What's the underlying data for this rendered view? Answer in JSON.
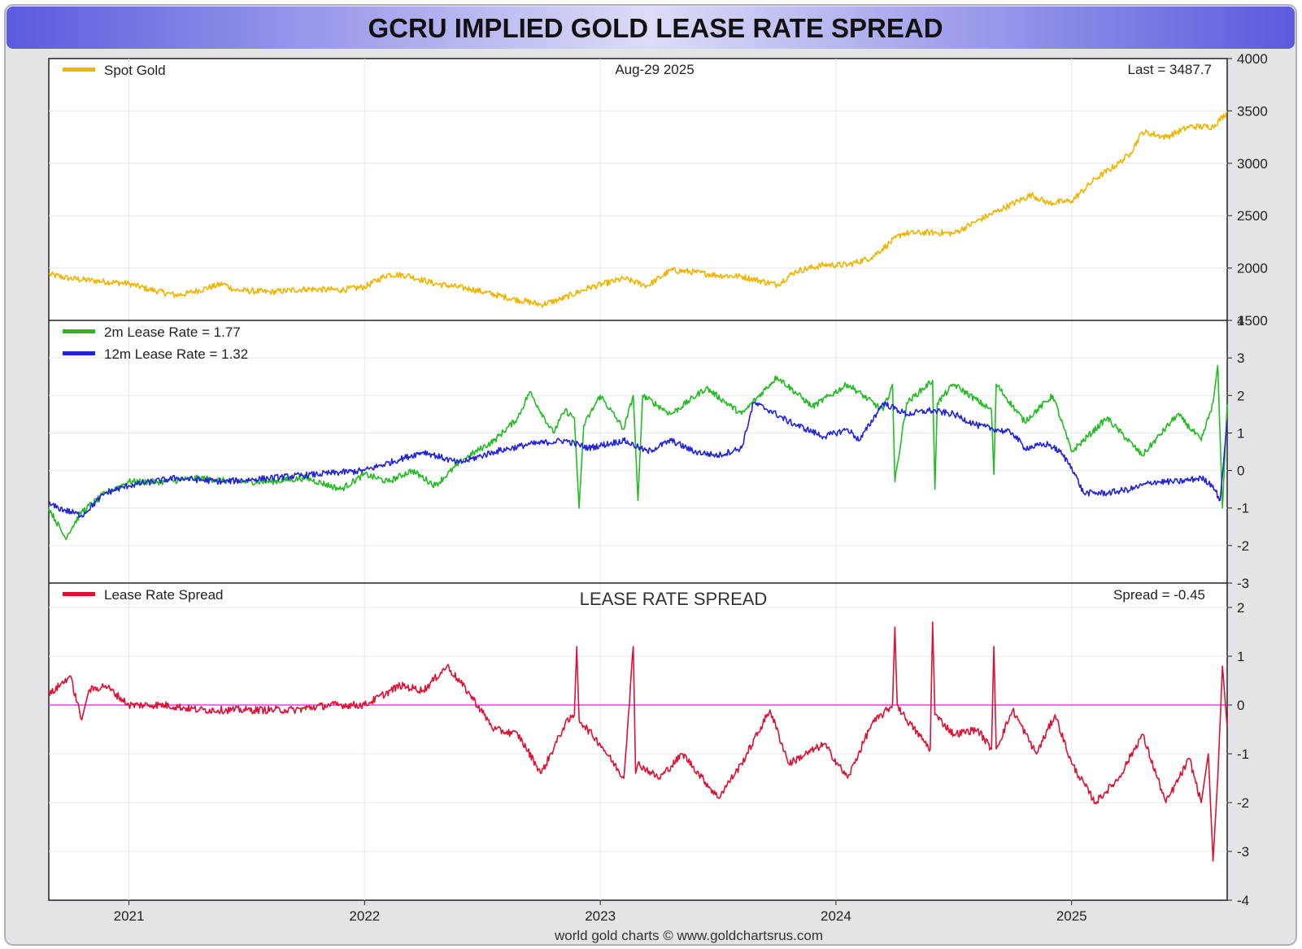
{
  "page": {
    "title": "GCRU IMPLIED GOLD LEASE RATE SPREAD",
    "footer": "world gold charts © www.goldchartsrus.com",
    "colors": {
      "header_gradient_mid": "#d9d9f7",
      "header_gradient_edge": "#5b5bde",
      "frame_bg": "#e4e4e8",
      "gold": "#f0b400",
      "green": "#22bb22",
      "blue": "#2222dd",
      "red": "#dd1133",
      "zero_line": "#dd44dd",
      "grid": "#e2e8ee"
    }
  },
  "chart_data": [
    {
      "type": "line",
      "panel": "top",
      "legend": [
        "Spot Gold"
      ],
      "date_label": "Aug-29  2025",
      "last_label": "Last = 3487.7",
      "ylim": [
        1500,
        4000
      ],
      "yticks": [
        1500,
        2000,
        2500,
        3000,
        3500,
        4000
      ],
      "xlim": [
        2020.66,
        2025.66
      ],
      "xticks": [
        2021,
        2022,
        2023,
        2024,
        2025
      ],
      "xtick_labels": [
        "2021",
        "2022",
        "2023",
        "2024",
        "2025"
      ],
      "grid": true,
      "legend_position": "top-left",
      "series": [
        {
          "name": "Spot Gold",
          "color": "#f0b400",
          "x": [
            2020.66,
            2020.75,
            2020.85,
            2021.0,
            2021.08,
            2021.2,
            2021.25,
            2021.4,
            2021.45,
            2021.6,
            2021.75,
            2021.9,
            2022.0,
            2022.1,
            2022.18,
            2022.3,
            2022.45,
            2022.6,
            2022.75,
            2022.83,
            2022.95,
            2023.1,
            2023.2,
            2023.3,
            2023.4,
            2023.5,
            2023.6,
            2023.75,
            2023.83,
            2023.95,
            2024.05,
            2024.15,
            2024.28,
            2024.4,
            2024.5,
            2024.6,
            2024.7,
            2024.83,
            2024.9,
            2025.0,
            2025.1,
            2025.2,
            2025.25,
            2025.3,
            2025.4,
            2025.5,
            2025.6,
            2025.66
          ],
          "y": [
            1940,
            1900,
            1880,
            1850,
            1800,
            1740,
            1760,
            1850,
            1790,
            1770,
            1800,
            1790,
            1820,
            1940,
            1930,
            1850,
            1800,
            1720,
            1650,
            1700,
            1810,
            1900,
            1830,
            1980,
            1960,
            1930,
            1920,
            1840,
            1970,
            2030,
            2030,
            2100,
            2330,
            2340,
            2330,
            2450,
            2560,
            2700,
            2620,
            2640,
            2850,
            3000,
            3100,
            3300,
            3250,
            3350,
            3350,
            3487.7
          ]
        }
      ]
    },
    {
      "type": "line",
      "panel": "middle",
      "legend": [
        "2m Lease Rate =  1.77",
        "12m Lease Rate =  1.32"
      ],
      "ylim": [
        -3,
        4
      ],
      "yticks": [
        -3,
        -2,
        -1,
        0,
        1,
        2,
        3,
        4
      ],
      "xlim": [
        2020.66,
        2025.66
      ],
      "xticks": [
        2021,
        2022,
        2023,
        2024,
        2025
      ],
      "grid": true,
      "legend_position": "top-left",
      "series": [
        {
          "name": "2m Lease Rate",
          "color": "#22bb22",
          "x": [
            2020.66,
            2020.73,
            2020.8,
            2020.9,
            2021.0,
            2021.15,
            2021.3,
            2021.45,
            2021.6,
            2021.75,
            2021.9,
            2022.0,
            2022.1,
            2022.2,
            2022.3,
            2022.42,
            2022.55,
            2022.65,
            2022.7,
            2022.8,
            2022.85,
            2022.89,
            2022.91,
            2022.93,
            2023.0,
            2023.1,
            2023.14,
            2023.16,
            2023.18,
            2023.3,
            2023.45,
            2023.6,
            2023.75,
            2023.9,
            2024.05,
            2024.2,
            2024.24,
            2024.25,
            2024.3,
            2024.41,
            2024.42,
            2024.43,
            2024.5,
            2024.66,
            2024.67,
            2024.68,
            2024.8,
            2024.92,
            2025.0,
            2025.15,
            2025.3,
            2025.45,
            2025.55,
            2025.6,
            2025.62,
            2025.64,
            2025.66
          ],
          "y": [
            -1.0,
            -1.8,
            -1.1,
            -0.6,
            -0.3,
            -0.3,
            -0.2,
            -0.3,
            -0.3,
            -0.2,
            -0.5,
            -0.1,
            -0.3,
            0.0,
            -0.4,
            0.3,
            0.8,
            1.4,
            2.1,
            1.0,
            1.6,
            1.4,
            -1.0,
            1.2,
            2.0,
            1.1,
            2.0,
            -0.8,
            2.0,
            1.5,
            2.2,
            1.5,
            2.5,
            1.7,
            2.3,
            1.6,
            2.3,
            -0.3,
            1.8,
            2.4,
            -0.5,
            1.8,
            2.3,
            1.6,
            -0.1,
            2.3,
            1.3,
            2.0,
            0.5,
            1.4,
            0.4,
            1.5,
            0.8,
            1.8,
            2.8,
            -1.0,
            1.77
          ]
        },
        {
          "name": "12m Lease Rate",
          "color": "#2222dd",
          "x": [
            2020.66,
            2020.7,
            2020.8,
            2020.9,
            2021.0,
            2021.2,
            2021.4,
            2021.6,
            2021.8,
            2022.0,
            2022.15,
            2022.25,
            2022.4,
            2022.55,
            2022.7,
            2022.85,
            2022.95,
            2023.1,
            2023.2,
            2023.3,
            2023.4,
            2023.5,
            2023.6,
            2023.65,
            2023.72,
            2023.8,
            2023.95,
            2024.05,
            2024.1,
            2024.2,
            2024.3,
            2024.4,
            2024.5,
            2024.6,
            2024.75,
            2024.8,
            2024.9,
            2024.95,
            2025.0,
            2025.05,
            2025.15,
            2025.25,
            2025.35,
            2025.45,
            2025.55,
            2025.6,
            2025.63,
            2025.66
          ],
          "y": [
            -0.9,
            -1.0,
            -1.2,
            -0.6,
            -0.4,
            -0.2,
            -0.3,
            -0.2,
            -0.1,
            0.0,
            0.3,
            0.5,
            0.2,
            0.5,
            0.7,
            0.8,
            0.6,
            0.8,
            0.5,
            0.8,
            0.5,
            0.4,
            0.6,
            1.8,
            1.6,
            1.3,
            0.9,
            1.1,
            0.8,
            1.8,
            1.5,
            1.6,
            1.5,
            1.2,
            1.0,
            0.6,
            0.7,
            0.5,
            0.1,
            -0.6,
            -0.6,
            -0.5,
            -0.3,
            -0.3,
            -0.2,
            -0.4,
            -0.8,
            1.32
          ]
        }
      ]
    },
    {
      "type": "line",
      "panel": "bottom",
      "legend": [
        "Lease Rate Spread"
      ],
      "panel_title": "LEASE RATE SPREAD",
      "last_label": "Spread = -0.45",
      "ylim": [
        -4,
        2.5
      ],
      "yticks": [
        -4,
        -3,
        -2,
        -1,
        0,
        1,
        2
      ],
      "xlim": [
        2020.66,
        2025.66
      ],
      "xticks": [
        2021,
        2022,
        2023,
        2024,
        2025
      ],
      "xtick_labels": [
        "2021",
        "2022",
        "2023",
        "2024",
        "2025"
      ],
      "zero_line": 0,
      "grid": true,
      "legend_position": "top-left",
      "series": [
        {
          "name": "Lease Rate Spread",
          "color": "#dd1133",
          "x": [
            2020.66,
            2020.75,
            2020.8,
            2020.83,
            2020.9,
            2021.0,
            2021.15,
            2021.3,
            2021.5,
            2021.7,
            2021.85,
            2022.0,
            2022.15,
            2022.25,
            2022.35,
            2022.45,
            2022.55,
            2022.65,
            2022.75,
            2022.85,
            2022.89,
            2022.9,
            2022.91,
            2023.0,
            2023.1,
            2023.14,
            2023.15,
            2023.16,
            2023.25,
            2023.35,
            2023.5,
            2023.6,
            2023.72,
            2023.8,
            2023.95,
            2024.05,
            2024.15,
            2024.24,
            2024.25,
            2024.26,
            2024.3,
            2024.4,
            2024.41,
            2024.42,
            2024.5,
            2024.6,
            2024.66,
            2024.67,
            2024.68,
            2024.75,
            2024.85,
            2024.93,
            2025.0,
            2025.1,
            2025.2,
            2025.3,
            2025.4,
            2025.5,
            2025.55,
            2025.58,
            2025.6,
            2025.62,
            2025.64,
            2025.66
          ],
          "y": [
            0.2,
            0.6,
            -0.3,
            0.3,
            0.4,
            0.0,
            0.0,
            -0.1,
            -0.1,
            -0.1,
            0.0,
            0.0,
            0.4,
            0.3,
            0.8,
            0.2,
            -0.5,
            -0.6,
            -1.4,
            -0.4,
            -0.2,
            1.2,
            -0.3,
            -0.8,
            -1.5,
            1.2,
            -1.4,
            -1.2,
            -1.5,
            -1.0,
            -1.9,
            -1.2,
            -0.1,
            -1.2,
            -0.8,
            -1.5,
            -0.4,
            0.0,
            1.6,
            0.0,
            -0.3,
            -0.9,
            1.7,
            -0.2,
            -0.6,
            -0.5,
            -0.9,
            1.2,
            -0.9,
            -0.1,
            -1.0,
            -0.2,
            -1.2,
            -2.0,
            -1.5,
            -0.6,
            -2.0,
            -1.1,
            -2.0,
            -1.0,
            -3.2,
            -1.5,
            0.8,
            -0.45
          ]
        }
      ]
    }
  ]
}
